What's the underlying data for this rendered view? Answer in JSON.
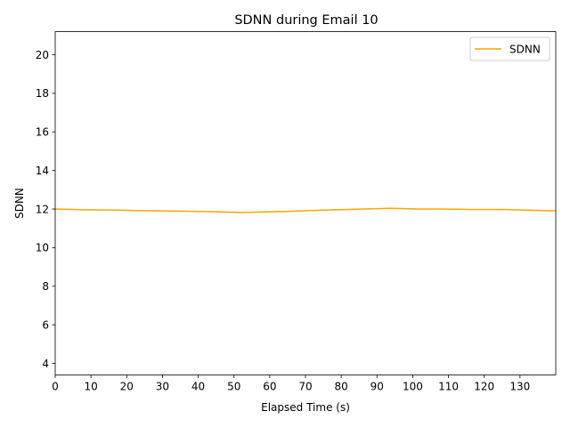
{
  "chart_data": {
    "type": "line",
    "title": "SDNN during Email 10",
    "xlabel": "Elapsed Time (s)",
    "ylabel": "SDNN",
    "xlim": [
      0,
      140
    ],
    "ylim": [
      3.4,
      21.2
    ],
    "xticks": [
      0,
      10,
      20,
      30,
      40,
      50,
      60,
      70,
      80,
      90,
      100,
      110,
      120,
      130
    ],
    "yticks": [
      4,
      6,
      8,
      10,
      12,
      14,
      16,
      18,
      20
    ],
    "grid": false,
    "legend_position": "top-right",
    "series": [
      {
        "name": "SDNN",
        "color": "#FFA500",
        "x": [
          0,
          9,
          16,
          23,
          31,
          39,
          45,
          52,
          58,
          65,
          71,
          78,
          86,
          94,
          101,
          108,
          116,
          125,
          131,
          140
        ],
        "y": [
          12.0,
          11.96,
          11.95,
          11.92,
          11.9,
          11.88,
          11.86,
          11.82,
          11.85,
          11.88,
          11.92,
          11.96,
          12.0,
          12.04,
          12.0,
          12.0,
          11.98,
          11.98,
          11.95,
          11.9
        ]
      }
    ]
  }
}
